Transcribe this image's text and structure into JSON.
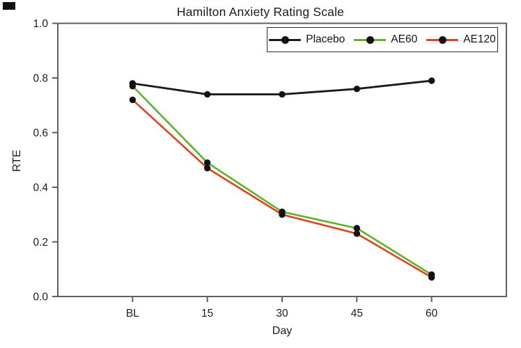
{
  "title": "Hamilton Anxiety Rating Scale",
  "chart_data": {
    "type": "line",
    "title": "Hamilton Anxiety Rating Scale",
    "xlabel": "Day",
    "ylabel": "RTE",
    "categories": [
      "BL",
      "15",
      "30",
      "45",
      "60"
    ],
    "series": [
      {
        "name": "Placebo",
        "color": "#1a1a1a",
        "values": [
          0.78,
          0.74,
          0.74,
          0.76,
          0.79
        ]
      },
      {
        "name": "AE60",
        "color": "#5cb327",
        "values": [
          0.77,
          0.49,
          0.31,
          0.25,
          0.08
        ]
      },
      {
        "name": "AE120",
        "color": "#e0431c",
        "values": [
          0.72,
          0.47,
          0.3,
          0.23,
          0.07
        ]
      }
    ],
    "marker": {
      "shape": "circle",
      "color": "#111111"
    },
    "ylim": [
      0.0,
      1.0
    ],
    "yticks": [
      0.0,
      0.2,
      0.4,
      0.6,
      0.8,
      1.0
    ],
    "ytick_labels": [
      "0.0",
      "0.2",
      "0.4",
      "0.6",
      "0.8",
      "1.0"
    ],
    "grid": false,
    "legend_position": "top-right",
    "axis_color": "#5f5f5f",
    "tick_label_color": "#1c1c1c"
  }
}
